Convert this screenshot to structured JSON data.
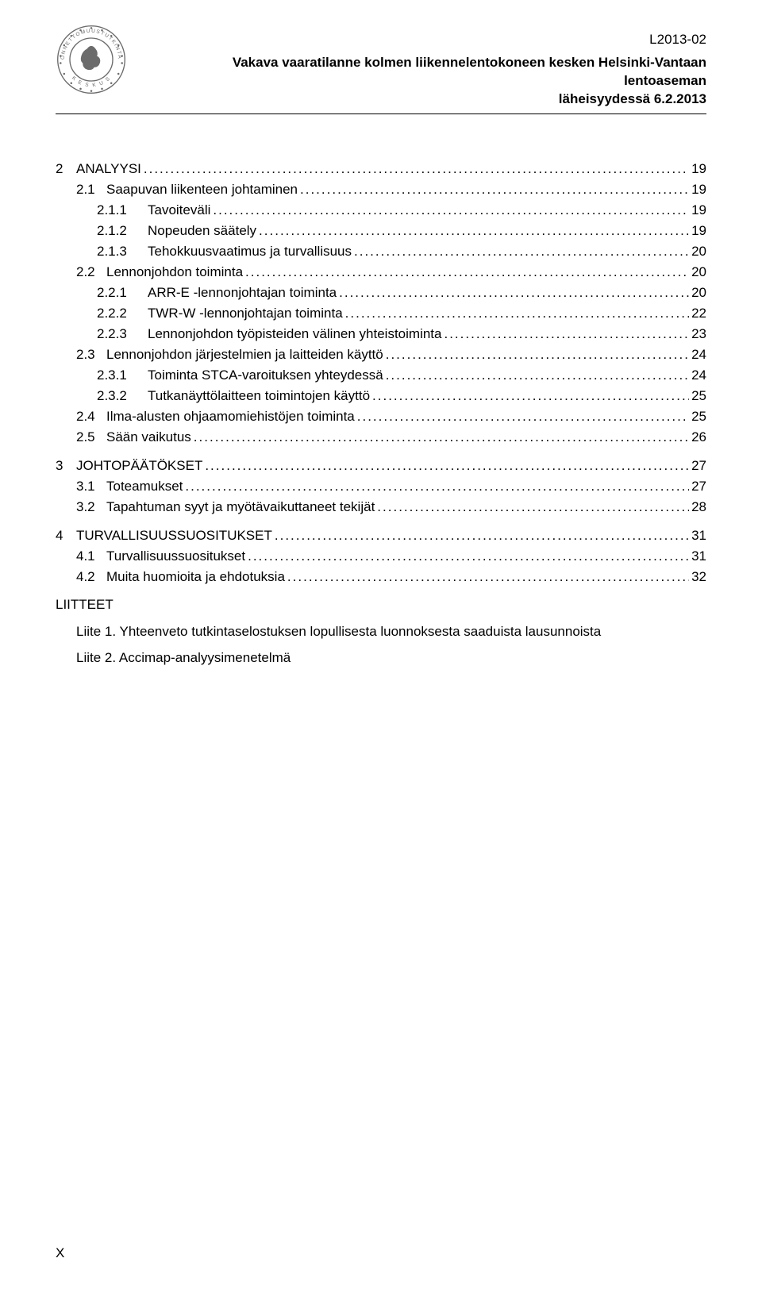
{
  "header": {
    "doc_id": "L2013-02",
    "title_line1": "Vakava vaaratilanne kolmen liikennelentokoneen kesken Helsinki-Vantaan lentoaseman",
    "title_line2": "läheisyydessä 6.2.2013"
  },
  "toc": [
    {
      "level": 0,
      "num": "2",
      "label": "ANALYYSI",
      "page": "19"
    },
    {
      "level": 1,
      "num": "2.1",
      "label": "Saapuvan liikenteen johtaminen",
      "page": "19"
    },
    {
      "level": 2,
      "num": "2.1.1",
      "label": "Tavoiteväli",
      "page": "19"
    },
    {
      "level": 2,
      "num": "2.1.2",
      "label": "Nopeuden säätely",
      "page": "19"
    },
    {
      "level": 2,
      "num": "2.1.3",
      "label": "Tehokkuusvaatimus ja turvallisuus",
      "page": "20"
    },
    {
      "level": 1,
      "num": "2.2",
      "label": "Lennonjohdon toiminta",
      "page": "20"
    },
    {
      "level": 2,
      "num": "2.2.1",
      "label": "ARR-E -lennonjohtajan toiminta",
      "page": "20"
    },
    {
      "level": 2,
      "num": "2.2.2",
      "label": "TWR-W -lennonjohtajan toiminta",
      "page": "22"
    },
    {
      "level": 2,
      "num": "2.2.3",
      "label": "Lennonjohdon työpisteiden välinen yhteistoiminta",
      "page": "23"
    },
    {
      "level": 1,
      "num": "2.3",
      "label": "Lennonjohdon järjestelmien ja laitteiden käyttö",
      "page": "24"
    },
    {
      "level": 2,
      "num": "2.3.1",
      "label": "Toiminta STCA-varoituksen yhteydessä",
      "page": "24"
    },
    {
      "level": 2,
      "num": "2.3.2",
      "label": "Tutkanäyttölaitteen toimintojen käyttö",
      "page": "25"
    },
    {
      "level": 1,
      "num": "2.4",
      "label": "Ilma-alusten ohjaamomiehistöjen toiminta",
      "page": "25"
    },
    {
      "level": 1,
      "num": "2.5",
      "label": "Sään vaikutus",
      "page": "26"
    },
    {
      "level": 0,
      "num": "3",
      "label": "JOHTOPÄÄTÖKSET",
      "page": "27"
    },
    {
      "level": 1,
      "num": "3.1",
      "label": "Toteamukset",
      "page": "27"
    },
    {
      "level": 1,
      "num": "3.2",
      "label": "Tapahtuman syyt ja myötävaikuttaneet tekijät",
      "page": "28"
    },
    {
      "level": 0,
      "num": "4",
      "label": "TURVALLISUUSSUOSITUKSET",
      "page": "31"
    },
    {
      "level": 1,
      "num": "4.1",
      "label": "Turvallisuussuositukset",
      "page": "31"
    },
    {
      "level": 1,
      "num": "4.2",
      "label": "Muita huomioita ja ehdotuksia",
      "page": "32"
    }
  ],
  "appendix": {
    "heading": "LIITTEET",
    "items": [
      "Liite 1. Yhteenveto tutkintaselostuksen lopullisesta luonnoksesta saaduista lausunnoista",
      "Liite 2. Accimap-analyysimenetelmä"
    ]
  },
  "page_number": "X",
  "logo": {
    "ring_text_top": "ONNETTOMUUSTUTKINTA",
    "ring_text_bottom": "KESKUS",
    "stroke": "#6b6b6b",
    "fill": "#6b6b6b"
  }
}
